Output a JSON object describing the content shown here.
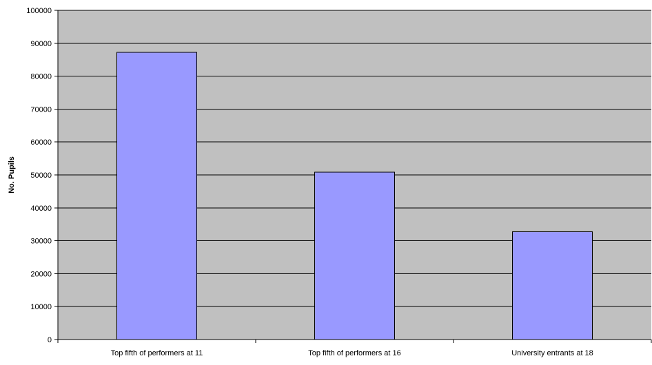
{
  "chart_data": {
    "type": "bar",
    "title": "",
    "xlabel": "",
    "ylabel": "No. Pupils",
    "categories": [
      "Top fifth of performers at 11",
      "Top fifth of performers at 16",
      "University entrants at 18"
    ],
    "values": [
      87200,
      50800,
      32700
    ],
    "ylim": [
      0,
      100000
    ],
    "yticks": [
      "0",
      "10000",
      "20000",
      "30000",
      "40000",
      "50000",
      "60000",
      "70000",
      "80000",
      "90000",
      "100000"
    ],
    "grid": true,
    "legend": "none",
    "colors": {
      "plot_background": "#c0c0c0",
      "bar_fill": "#9999ff",
      "bar_stroke": "#000000",
      "gridline": "#000000"
    }
  }
}
